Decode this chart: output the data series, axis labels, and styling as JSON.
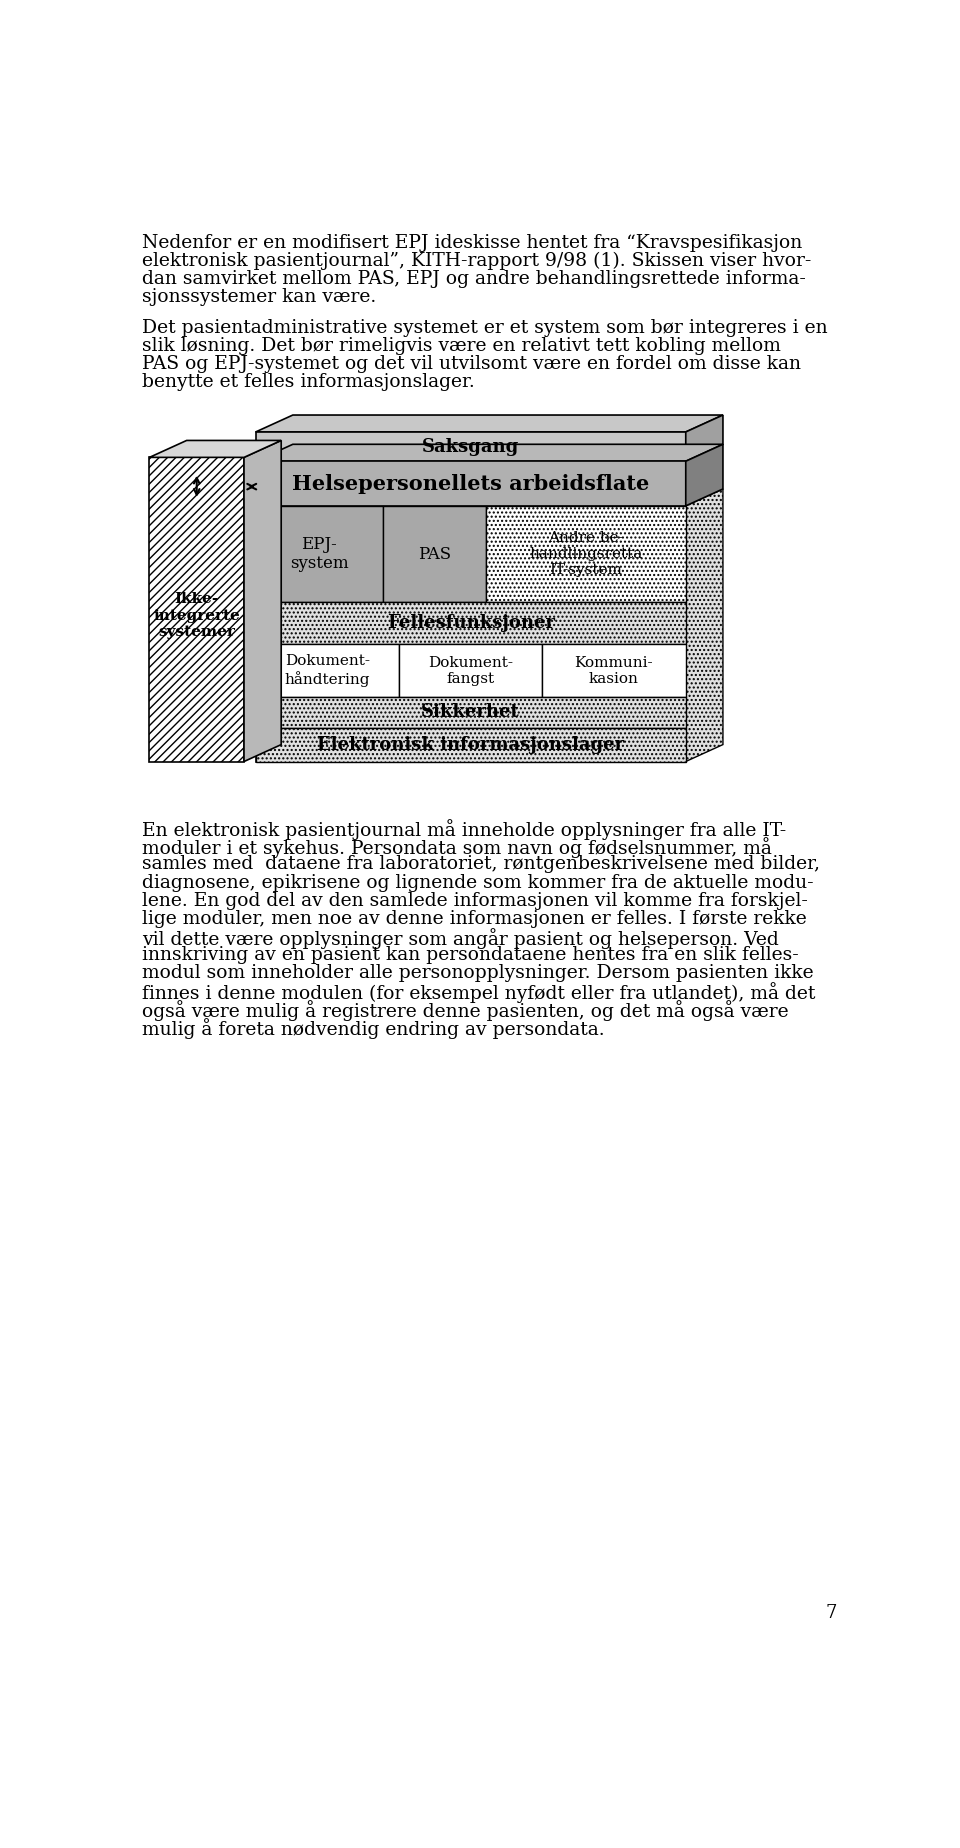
{
  "para1_lines": [
    "Nedenfor er en modifisert EPJ ideskisse hentet fra “Kravspesifikasjon",
    "elektronisk pasientjournal”, KITH-rapport 9/98 (1). Skissen viser hvor-",
    "dan samvirket mellom PAS, EPJ og andre behandlingsrettede informa-",
    "sjonssystemer kan være."
  ],
  "para2_lines": [
    "Det pasientadministrative systemet er et system som bør integreres i en",
    "slik løsning. Det bør rimeligvis være en relativt tett kobling mellom",
    "PAS og EPJ-systemet og det vil utvilsomt være en fordel om disse kan",
    "benytte et felles informasjonslager."
  ],
  "para3_lines": [
    "En elektronisk pasientjournal må inneholde opplysninger fra alle IT-",
    "moduler i et sykehus. Persondata som navn og fødselsnummer, må",
    "samles med  dataene fra laboratoriet, røntgenbeskrivelsene med bilder,",
    "diagnosene, epikrisene og lignende som kommer fra de aktuelle modu-",
    "lene. En god del av den samlede informasjonen vil komme fra forskjel-",
    "lige moduler, men noe av denne informasjonen er felles. I første rekke",
    "vil dette være opplysninger som angår pasient og helseperson. Ved",
    "innskriving av en pasient kan persondataene hentes fra en slik felles-",
    "modul som inneholder alle personopplysninger. Dersom pasienten ikke",
    "finnes i denne modulen (for eksempel nyfødt eller fra utlandet), må det",
    "også være mulig å registrere denne pasienten, og det må også være",
    "mulig å foreta nødvendig endring av persondata."
  ],
  "page_number": "7",
  "col_labels": [
    "EPJ-\nsystem",
    "PAS",
    "Andre be-\nhandlingsretta\nIT-system"
  ],
  "sub_labels": [
    "Dokument-\nhåndtering",
    "Dokument-\nfangst",
    "Kommuni-\nkasion"
  ],
  "pillar_label": "Ikke-\nintegrerte\nsystemer",
  "saksgang_label": "Saksgang",
  "arbeidsflate_label": "Helsepersonellets arbeidsflate",
  "ff_label": "Fellesfunksjoner",
  "sik_label": "Sikkerhet",
  "eil_label": "Elektronisk informasjonslager"
}
